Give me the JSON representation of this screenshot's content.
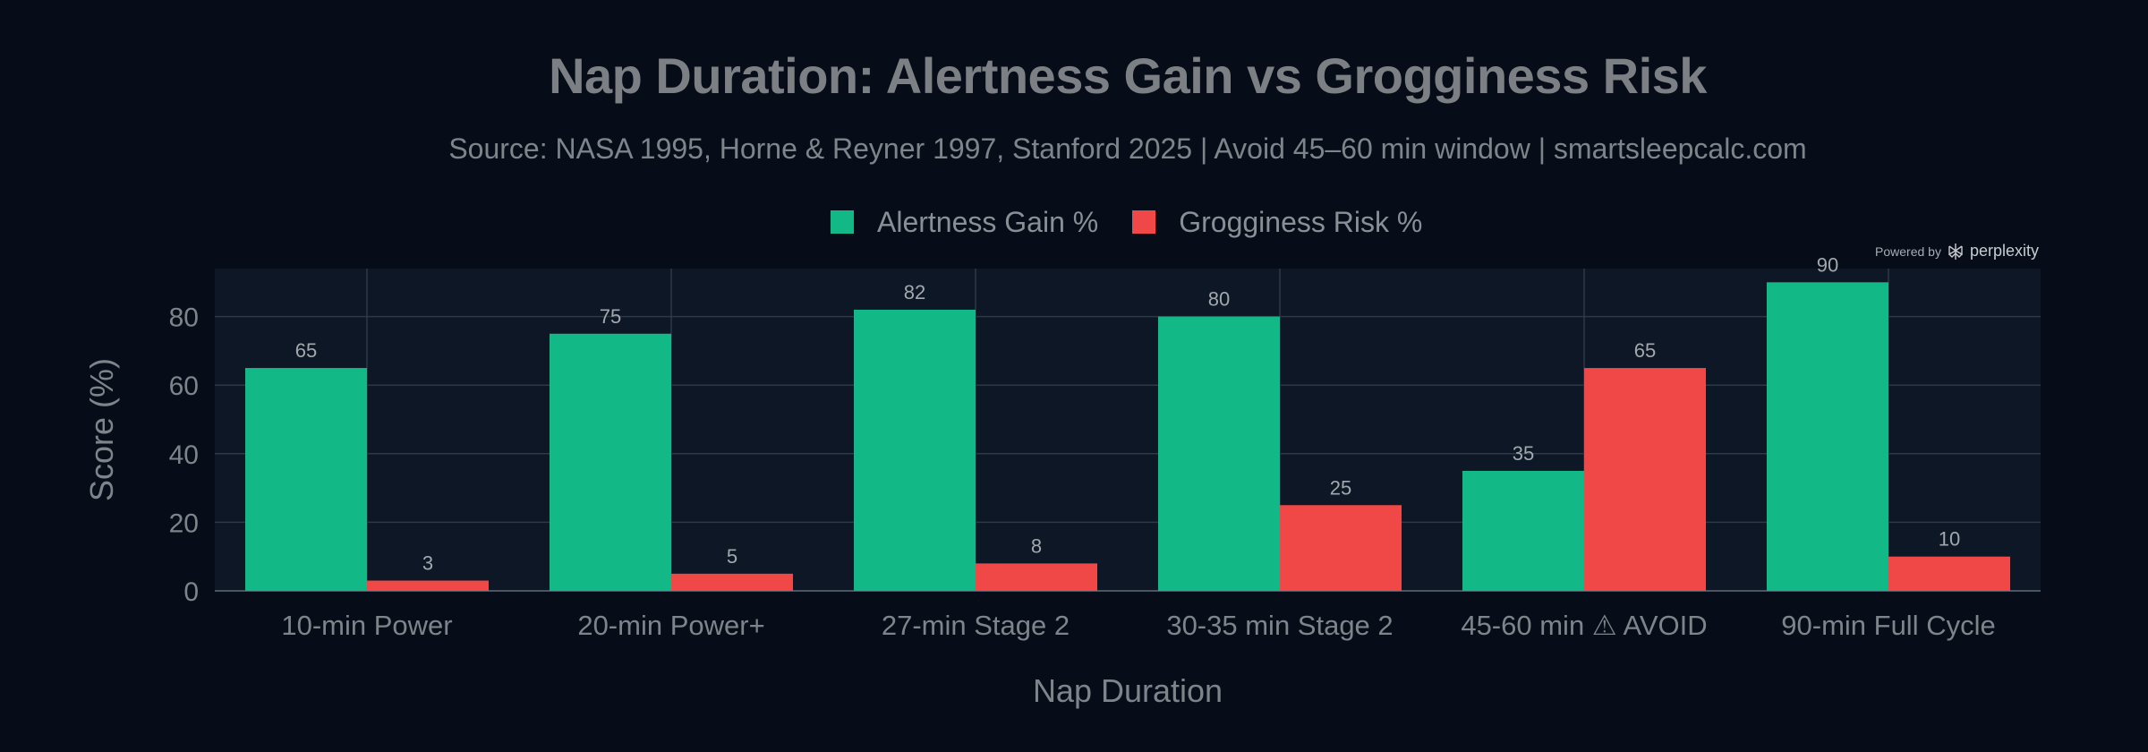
{
  "chart_data": {
    "type": "bar",
    "title": "Nap Duration: Alertness Gain vs Grogginess Risk",
    "subtitle": "Source: NASA 1995, Horne & Reyner 1997, Stanford 2025 | Avoid 45–60 min window | smartsleepcalc.com",
    "xlabel": "Nap Duration",
    "ylabel": "Score (%)",
    "categories": [
      "10-min Power",
      "20-min Power+",
      "27-min Stage 2",
      "30-35 min Stage 2",
      "45-60 min ⚠ AVOID",
      "90-min Full Cycle"
    ],
    "series": [
      {
        "name": "Alertness Gain %",
        "color": "#12b886",
        "values": [
          65,
          75,
          82,
          80,
          35,
          90
        ]
      },
      {
        "name": "Grogginess Risk %",
        "color": "#f04747",
        "values": [
          3,
          5,
          8,
          25,
          65,
          10
        ]
      }
    ],
    "ylim": [
      0,
      94
    ],
    "yticks": [
      0,
      20,
      40,
      60,
      80
    ],
    "grid": true,
    "legend_position": "top-center"
  },
  "watermark": {
    "prefix": "Powered by",
    "brand": "perplexity"
  },
  "colors": {
    "background": "#060d18",
    "plot_background": "#0d1725",
    "grid": "#2c3947",
    "text": "#7f848a"
  }
}
